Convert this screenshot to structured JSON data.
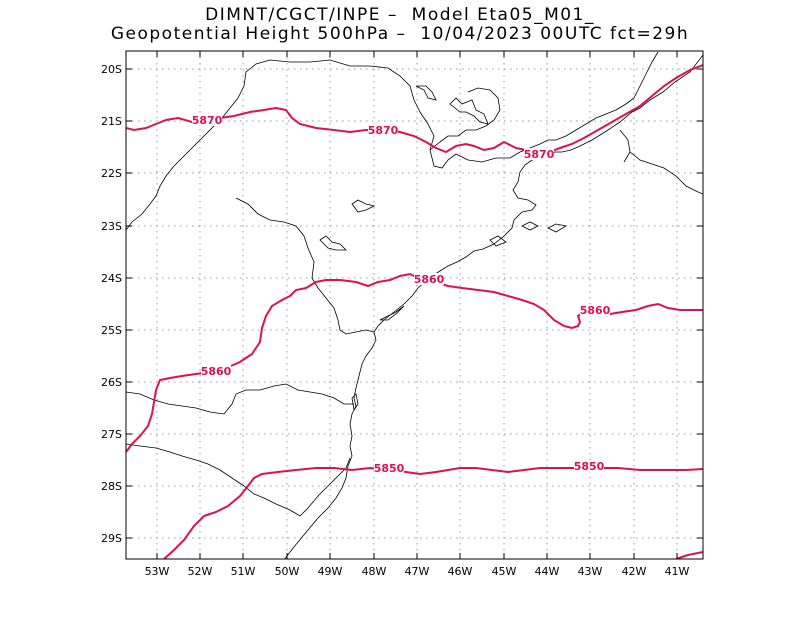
{
  "title": {
    "line1": "DIMNT/CGCT/INPE –  Model Eta05_M01_",
    "line2": "Geopotential Height 500hPa –  10/04/2023 00UTC fct=29h"
  },
  "map": {
    "lon_range": [
      -53.6,
      -40.5
    ],
    "lat_range": [
      -29.4,
      -19.7
    ],
    "grid": true,
    "contour_color": "#e0104e",
    "lat_labels": [
      "20S",
      "21S",
      "22S",
      "23S",
      "24S",
      "25S",
      "26S",
      "27S",
      "28S",
      "29S"
    ],
    "lon_labels": [
      "53W",
      "52W",
      "51W",
      "50W",
      "49W",
      "48W",
      "47W",
      "46W",
      "45W",
      "44W",
      "43W",
      "42W",
      "41W"
    ],
    "contours": [
      {
        "value": 5870,
        "labels": [
          "5870",
          "5870",
          "5870"
        ]
      },
      {
        "value": 5860,
        "labels": [
          "5860",
          "5860",
          "5860"
        ]
      },
      {
        "value": 5850,
        "labels": [
          "5850",
          "5850"
        ]
      }
    ]
  }
}
